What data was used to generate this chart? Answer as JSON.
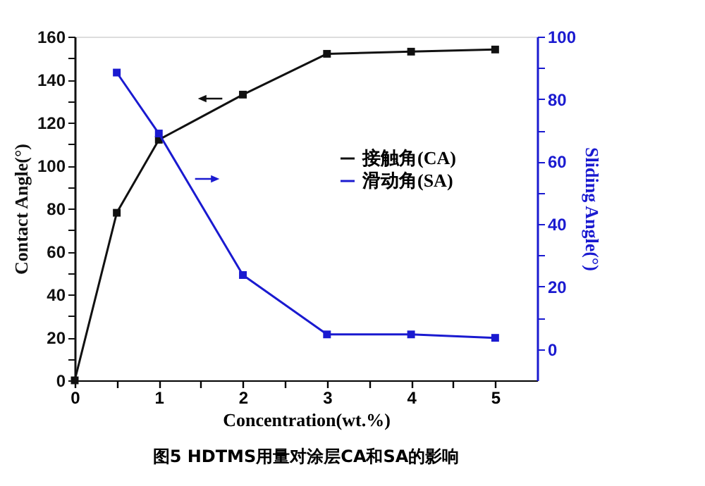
{
  "chart_data": {
    "type": "line",
    "xlabel": "Concentration(wt.%)",
    "ylabel": "Contact Angle(°)",
    "y2label": "Sliding Angle(°)",
    "x": [
      0,
      0.5,
      1,
      2,
      3,
      4,
      5
    ],
    "series": [
      {
        "name": "接触角(CA)",
        "color": "#111111",
        "values": [
          0,
          78,
          112,
          133,
          152,
          153,
          154
        ]
      },
      {
        "name": "滑动角(SA)",
        "color": "#1a1ad0",
        "axis": "y2",
        "x": [
          0.5,
          1,
          2,
          3,
          4,
          5
        ],
        "values": [
          88.5,
          69,
          23.7,
          4.7,
          4.7,
          3.6
        ]
      }
    ],
    "xlim": [
      0,
      5.5
    ],
    "xticks": [
      0,
      {
        "value": 0.5,
        "label": null
      },
      1,
      {
        "value": 1.5,
        "label": null
      },
      2,
      {
        "value": 2.5,
        "label": null
      },
      3,
      {
        "value": 3.5,
        "label": null
      },
      4,
      {
        "value": 4.5,
        "label": null
      },
      5
    ],
    "ylim": [
      0,
      160
    ],
    "yticks": [
      0,
      {
        "value": 10,
        "label": null
      },
      20,
      {
        "value": 30,
        "label": null
      },
      40,
      {
        "value": 50,
        "label": null
      },
      60,
      {
        "value": 70,
        "label": null
      },
      80,
      {
        "value": 90,
        "label": null
      },
      100,
      {
        "value": 110,
        "label": null
      },
      120,
      {
        "value": 130,
        "label": null
      },
      140,
      {
        "value": 150,
        "label": null
      },
      160
    ],
    "y2lim": [
      -10,
      100
    ],
    "y2ticks": [
      0,
      {
        "value": 10,
        "label": null
      },
      20,
      {
        "value": 30,
        "label": null
      },
      40,
      {
        "value": 50,
        "label": null
      },
      60,
      {
        "value": 70,
        "label": null
      },
      80,
      {
        "value": 90,
        "label": null
      },
      100
    ],
    "marker": "square",
    "line_style": "solid",
    "grid": false,
    "legend": "right",
    "annotations": [
      "图5 HDTMS用量对涂层CA和SA的影响"
    ]
  }
}
